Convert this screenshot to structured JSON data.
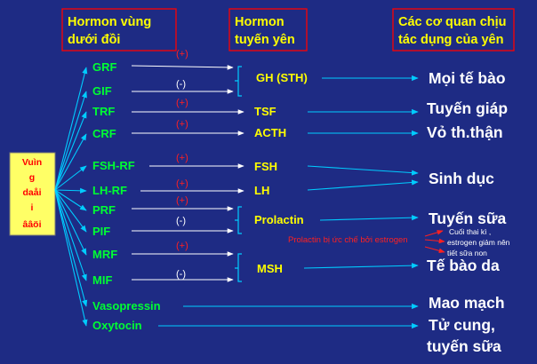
{
  "headers": {
    "hypothalamus": [
      "Hormon vùng",
      "dưới đồi"
    ],
    "pituitary": [
      "Hormon",
      "tuyến yên"
    ],
    "organs": [
      "Các cơ quan chịu",
      "tác dụng của yên"
    ]
  },
  "left_box": [
    "Vuìn",
    "g",
    "daåi",
    "i",
    "ââöi"
  ],
  "hypothalamic_hormones": {
    "grf": "GRF",
    "gif": "GIF",
    "trf": "TRF",
    "crf": "CRF",
    "fsh_rf": "FSH-RF",
    "lh_rf": "LH-RF",
    "prf": "PRF",
    "pif": "PIF",
    "mrf": "MRF",
    "mif": "MIF",
    "vasopressin": "Vasopressin",
    "oxytocin": "Oxytocin"
  },
  "pituitary_hormones": {
    "gh": "GH (STH)",
    "tsf": "TSF",
    "acth": "ACTH",
    "fsh": "FSH",
    "lh": "LH",
    "prolactin": "Prolactin",
    "msh": "MSH"
  },
  "signs": {
    "plus": "(+)",
    "minus": "(-)"
  },
  "target_organs": {
    "all_cells": "Mọi tế bào",
    "thyroid": "Tuyến giáp",
    "adrenal_cortex": "Vỏ th.thận",
    "gonads": "Sinh dục",
    "mammary": "Tuyến sữa",
    "skin_cells": "Tế bào da",
    "capillaries": "Mao mạch",
    "uterus": "Tử cung,",
    "mammary_2": "tuyến sữa"
  },
  "notes": {
    "prolactin_inhibit": "Prolactin bị ức chế bởi estrogen",
    "late_pregnancy": [
      "Cuối thai kì ,",
      "estrogen giảm nên",
      "tiết sữa non"
    ]
  },
  "colors": {
    "background": "#1e2b84",
    "header_text": "#ffff00",
    "header_border": "#ff0000",
    "hypothalamic_text": "#00ff33",
    "pituitary_text": "#ffff00",
    "organ_text": "#ffffff",
    "arrow_white": "#ffffff",
    "arrow_cyan": "#00ccff",
    "left_box_fill": "#ffff66",
    "left_box_text": "#ff0000"
  }
}
